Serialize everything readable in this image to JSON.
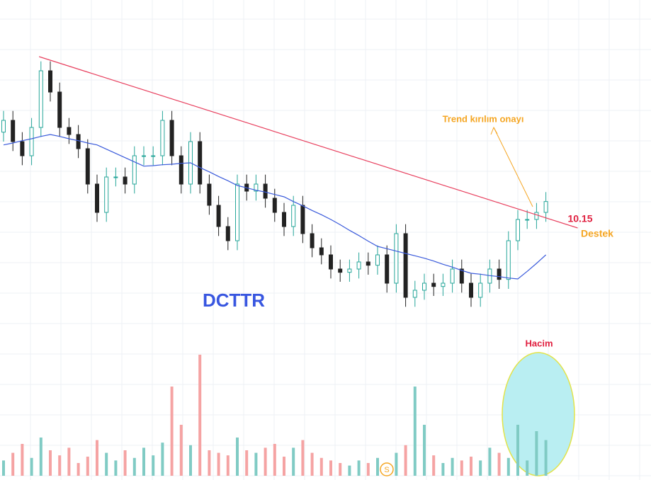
{
  "chart_data": {
    "type": "candlestick",
    "title": "DCTTR",
    "ylim": [
      8,
      14
    ],
    "volume_ylim": [
      0,
      100
    ],
    "open": [
      12.1,
      12.35,
      11.9,
      11.6,
      12.2,
      13.4,
      12.95,
      12.2,
      12.05,
      11.75,
      11.0,
      10.4,
      11.15,
      11.15,
      11.0,
      11.6,
      11.6,
      11.6,
      12.35,
      11.6,
      11.0,
      11.9,
      11.0,
      10.55,
      10.1,
      9.8,
      11.0,
      10.85,
      11.0,
      10.7,
      10.4,
      10.1,
      10.55,
      9.95,
      9.65,
      9.5,
      9.2,
      9.13,
      9.2,
      9.35,
      9.28,
      9.5,
      8.9,
      9.95,
      8.6,
      8.75,
      8.9,
      8.83,
      8.9,
      9.2,
      8.9,
      8.6,
      8.9,
      9.2,
      8.98,
      9.8,
      10.25,
      10.25,
      10.4
    ],
    "high": [
      12.55,
      12.55,
      12.1,
      12.4,
      13.6,
      13.6,
      13.15,
      12.4,
      12.25,
      11.95,
      11.2,
      11.35,
      11.35,
      11.35,
      11.8,
      11.8,
      11.8,
      12.55,
      12.55,
      11.8,
      12.1,
      12.1,
      11.2,
      10.75,
      10.3,
      11.2,
      11.2,
      11.2,
      11.2,
      10.9,
      10.6,
      10.75,
      10.75,
      10.15,
      9.85,
      9.7,
      9.4,
      9.4,
      9.55,
      9.55,
      9.7,
      9.7,
      10.15,
      10.15,
      8.95,
      9.1,
      9.1,
      9.1,
      9.4,
      9.4,
      9.1,
      9.1,
      9.4,
      9.4,
      10.0,
      10.45,
      10.45,
      10.6,
      10.83
    ],
    "low": [
      11.9,
      11.7,
      11.4,
      11.4,
      12.0,
      12.75,
      12.0,
      11.85,
      11.55,
      10.8,
      10.2,
      10.2,
      10.95,
      10.8,
      10.8,
      11.4,
      11.4,
      11.4,
      11.4,
      10.8,
      10.8,
      10.8,
      10.35,
      9.9,
      9.6,
      9.6,
      10.65,
      10.65,
      10.5,
      10.2,
      9.9,
      9.9,
      9.75,
      9.45,
      9.3,
      9.0,
      8.93,
      8.93,
      9.0,
      9.08,
      9.08,
      8.7,
      8.7,
      8.4,
      8.4,
      8.55,
      8.63,
      8.63,
      8.7,
      8.7,
      8.4,
      8.4,
      8.7,
      8.78,
      8.78,
      9.6,
      10.05,
      10.05,
      10.2
    ],
    "close": [
      12.35,
      11.9,
      11.6,
      12.2,
      13.4,
      12.95,
      12.2,
      12.05,
      11.75,
      11.0,
      10.4,
      11.15,
      11.15,
      11.0,
      11.6,
      11.6,
      11.6,
      12.35,
      11.6,
      11.0,
      11.9,
      11.0,
      10.55,
      10.1,
      9.8,
      11.0,
      10.85,
      11.0,
      10.7,
      10.4,
      10.1,
      10.55,
      9.95,
      9.65,
      9.5,
      9.2,
      9.13,
      9.2,
      9.35,
      9.28,
      9.5,
      8.9,
      9.95,
      8.6,
      8.75,
      8.9,
      8.83,
      8.9,
      9.2,
      8.9,
      8.6,
      8.9,
      9.2,
      8.98,
      9.8,
      10.25,
      10.25,
      10.4,
      10.63
    ],
    "moving_average": [
      11.83,
      11.87,
      11.92,
      11.96,
      12.01,
      12.05,
      12.01,
      11.96,
      11.92,
      11.87,
      11.83,
      11.74,
      11.65,
      11.56,
      11.47,
      11.38,
      11.39,
      11.41,
      11.42,
      11.44,
      11.45,
      11.35,
      11.26,
      11.16,
      11.07,
      10.97,
      10.92,
      10.87,
      10.83,
      10.78,
      10.73,
      10.63,
      10.54,
      10.44,
      10.35,
      10.25,
      10.14,
      10.02,
      9.91,
      9.79,
      9.68,
      9.63,
      9.58,
      9.53,
      9.48,
      9.43,
      9.37,
      9.3,
      9.24,
      9.17,
      9.11,
      9.09,
      9.06,
      9.04,
      9.01,
      8.99,
      9.15,
      9.32,
      9.5
    ],
    "volume": [
      12,
      18,
      25,
      14,
      30,
      20,
      16,
      22,
      10,
      15,
      28,
      18,
      12,
      20,
      14,
      22,
      16,
      26,
      70,
      40,
      24,
      95,
      20,
      18,
      16,
      30,
      20,
      18,
      22,
      25,
      15,
      22,
      28,
      18,
      14,
      12,
      10,
      8,
      12,
      10,
      14,
      10,
      18,
      24,
      70,
      40,
      16,
      10,
      14,
      12,
      15,
      12,
      22,
      18,
      14,
      40,
      12,
      35,
      28
    ],
    "up_color": "#26a69a",
    "down_color": "#222222",
    "ma_color": "#3b5bdb",
    "volume_up_color": "#80cbc4",
    "volume_down_color": "#f5a3a3",
    "trendline": {
      "x": [
        3.8,
        61.4
      ],
      "values": [
        13.7,
        10.07
      ],
      "color": "#e8415f"
    },
    "annotations": {
      "trend_break": "Trend kırılım onayı",
      "level": "10.15",
      "support": "Destek",
      "volume": "Hacim",
      "marker": "S"
    }
  }
}
